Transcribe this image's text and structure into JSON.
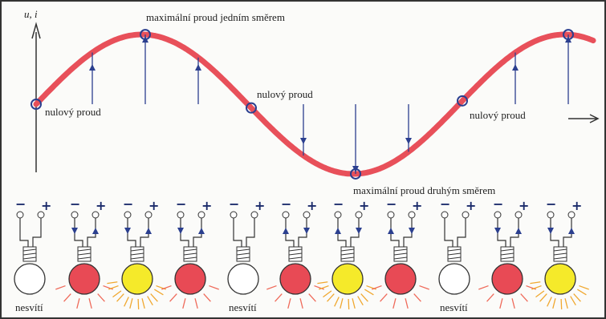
{
  "axis_label": "u, i",
  "annotations": {
    "max_positive": "maximální proud jedním směrem",
    "max_negative": "maximální proud druhým směrem",
    "zero": [
      "nulový proud",
      "nulový proud",
      "nulový proud"
    ]
  },
  "bulbs": {
    "minus": "−",
    "plus": "+",
    "off_label": [
      "nesvítí",
      "nesvítí",
      "nesvítí"
    ]
  }
}
